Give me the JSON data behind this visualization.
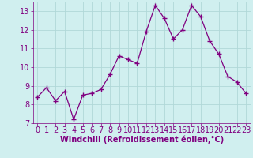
{
  "x": [
    0,
    1,
    2,
    3,
    4,
    5,
    6,
    7,
    8,
    9,
    10,
    11,
    12,
    13,
    14,
    15,
    16,
    17,
    18,
    19,
    20,
    21,
    22,
    23
  ],
  "y": [
    8.4,
    8.9,
    8.2,
    8.7,
    7.2,
    8.5,
    8.6,
    8.8,
    9.6,
    10.6,
    10.4,
    10.2,
    11.9,
    13.3,
    12.6,
    11.5,
    12.0,
    13.3,
    12.7,
    11.4,
    10.7,
    9.5,
    9.2,
    8.6
  ],
  "line_color": "#800080",
  "marker": "+",
  "marker_size": 5,
  "marker_linewidth": 1.0,
  "bg_color": "#d0efef",
  "grid_color": "#b0d8d8",
  "xlabel": "Windchill (Refroidissement éolien,°C)",
  "ylim": [
    7,
    13.5
  ],
  "xlim": [
    -0.5,
    23.5
  ],
  "yticks": [
    7,
    8,
    9,
    10,
    11,
    12,
    13
  ],
  "xticks": [
    0,
    1,
    2,
    3,
    4,
    5,
    6,
    7,
    8,
    9,
    10,
    11,
    12,
    13,
    14,
    15,
    16,
    17,
    18,
    19,
    20,
    21,
    22,
    23
  ],
  "tick_color": "#800080",
  "label_color": "#800080",
  "tick_fontsize": 7,
  "xlabel_fontsize": 7
}
